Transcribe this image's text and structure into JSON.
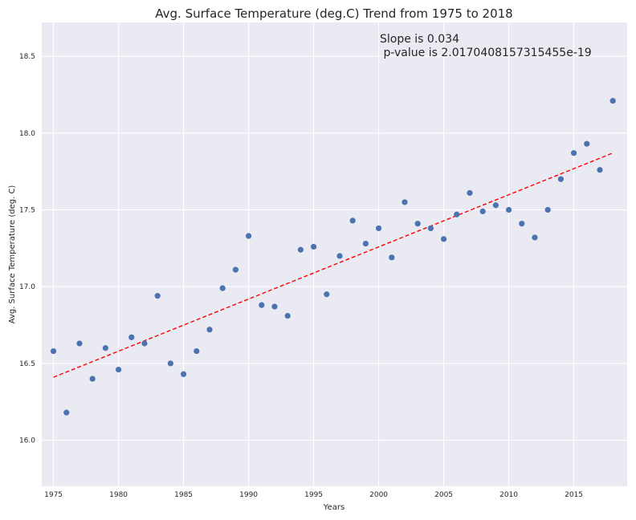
{
  "chart_data": {
    "type": "scatter",
    "title": "Avg. Surface Temperature (deg.C) Trend from 1975 to 2018",
    "xlabel": "Years",
    "ylabel": "Avg. Surface Temperature (deg. C)",
    "xlim": [
      1974.1,
      2019.1
    ],
    "ylim": [
      15.7,
      18.72
    ],
    "xticks": [
      1975,
      1980,
      1985,
      1990,
      1995,
      2000,
      2005,
      2010,
      2015
    ],
    "yticks": [
      16.0,
      16.5,
      17.0,
      17.5,
      18.0,
      18.5
    ],
    "ytick_labels": [
      "16.0",
      "16.5",
      "17.0",
      "17.5",
      "18.0",
      "18.5"
    ],
    "grid": true,
    "point_color": "#4c72b0",
    "trend_color": "#ff0000",
    "background_color": "#eaeaf2",
    "x": [
      1975,
      1976,
      1977,
      1978,
      1979,
      1980,
      1981,
      1982,
      1983,
      1984,
      1985,
      1986,
      1987,
      1988,
      1989,
      1990,
      1991,
      1992,
      1993,
      1994,
      1995,
      1996,
      1997,
      1998,
      1999,
      2000,
      2001,
      2002,
      2003,
      2004,
      2005,
      2006,
      2007,
      2008,
      2009,
      2010,
      2011,
      2012,
      2013,
      2014,
      2015,
      2016,
      2017,
      2018
    ],
    "y": [
      16.58,
      16.18,
      16.63,
      16.4,
      16.6,
      16.46,
      16.67,
      16.63,
      16.94,
      16.5,
      16.43,
      16.58,
      16.72,
      16.99,
      17.11,
      17.33,
      16.88,
      16.87,
      16.81,
      17.24,
      17.26,
      16.95,
      17.2,
      17.43,
      17.28,
      17.38,
      17.19,
      17.55,
      17.41,
      17.38,
      17.31,
      17.47,
      17.61,
      17.49,
      17.53,
      17.5,
      17.41,
      17.32,
      17.5,
      17.7,
      17.87,
      17.93,
      17.76,
      18.21
    ],
    "trend_line": {
      "x": [
        1975,
        2018
      ],
      "y": [
        16.41,
        17.87
      ]
    },
    "annotations": [
      "Slope is 0.034",
      " p-value is 2.0170408157315455e-19"
    ]
  }
}
